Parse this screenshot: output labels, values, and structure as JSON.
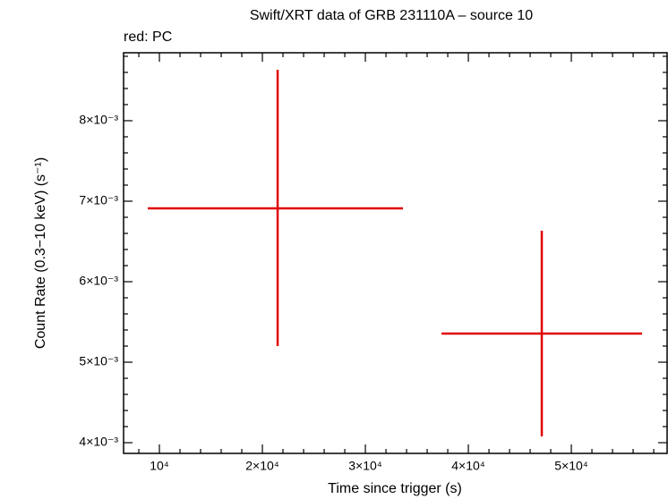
{
  "chart_data": {
    "type": "errorbar",
    "title": "Swift/XRT data of GRB 231110A – source 10",
    "subtitle": "red: PC",
    "x_label": "Time since trigger (s)",
    "y_label": "Count Rate (0.3−10 keV) (s⁻¹)",
    "xlim": [
      6520,
      59300
    ],
    "ylim": [
      0.003867,
      0.008844
    ],
    "xticks": [
      {
        "value": 10000,
        "label": "10⁴"
      },
      {
        "value": 20000,
        "label": "2×10⁴"
      },
      {
        "value": 30000,
        "label": "3×10⁴"
      },
      {
        "value": 40000,
        "label": "4×10⁴"
      },
      {
        "value": 50000,
        "label": "5×10⁴"
      }
    ],
    "yticks": [
      {
        "value": 0.004,
        "label": "4×10⁻³"
      },
      {
        "value": 0.005,
        "label": "5×10⁻³"
      },
      {
        "value": 0.006,
        "label": "6×10⁻³"
      },
      {
        "value": 0.007,
        "label": "7×10⁻³"
      },
      {
        "value": 0.008,
        "label": "8×10⁻³"
      }
    ],
    "xminorticks": [
      8000,
      12000,
      14000,
      16000,
      18000,
      22000,
      24000,
      26000,
      28000,
      32000,
      34000,
      36000,
      38000,
      42000,
      44000,
      46000,
      48000,
      52000,
      54000,
      56000,
      58000
    ],
    "yminorticks": [
      0.0042,
      0.0044,
      0.0046,
      0.0048,
      0.0052,
      0.0054,
      0.0056,
      0.0058,
      0.0062,
      0.0064,
      0.0066,
      0.0068,
      0.0072,
      0.0074,
      0.0076,
      0.0078,
      0.0082,
      0.0084,
      0.0086,
      0.0088
    ],
    "series": [
      {
        "name": "PC",
        "color": "#e00000",
        "x": [
          21480,
          47130
        ],
        "x_low": [
          8870,
          37390
        ],
        "x_high": [
          33650,
          56870
        ],
        "values": [
          0.006911,
          0.005356
        ],
        "y_low": [
          0.0052,
          0.004078
        ],
        "y_high": [
          0.008633,
          0.006633
        ]
      }
    ]
  }
}
